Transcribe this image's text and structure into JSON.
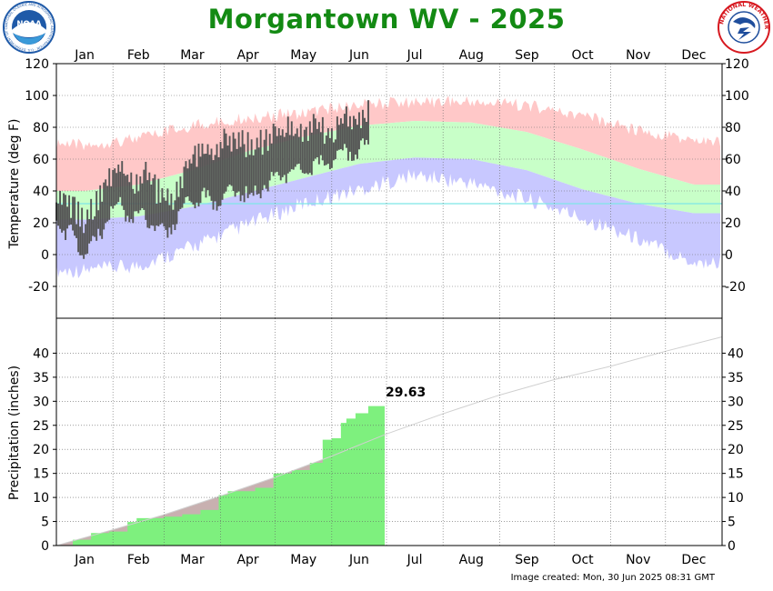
{
  "title": "Morgantown WV - 2025",
  "image_created": "Image created: Mon, 30 Jun 2025 08:31 GMT",
  "logos": {
    "noaa": {
      "text": "NOAA",
      "ring_text": "NATIONAL OCEANIC AND ATMOSPHERIC ADMINISTRATION · U.S. DEPARTMENT OF COMMERCE",
      "colors": {
        "blue": "#1f5aa8",
        "light": "#3a9ad9"
      }
    },
    "nws": {
      "ring_text": "NATIONAL WEATHER SERVICE",
      "colors": {
        "red": "#d71920",
        "blue": "#1f4e9c"
      }
    }
  },
  "colors": {
    "record_high_band": "#ffc8c8",
    "normal_band": "#c8ffc8",
    "record_low_band": "#c8c8ff",
    "observed": "#555555",
    "freezing_line": "#7ee6e6",
    "precip_observed": "#7ef07e",
    "precip_normal": "#c8b0b0",
    "title": "#138a13"
  },
  "chart_data": [
    {
      "type": "bar",
      "panel": "temperature",
      "ylabel": "Temperature (deg F)",
      "ylim": [
        -40,
        120
      ],
      "yticks": [
        120,
        100,
        80,
        60,
        40,
        20,
        0,
        -20
      ],
      "months": [
        "Jan",
        "Feb",
        "Mar",
        "Apr",
        "May",
        "Jun",
        "Jul",
        "Aug",
        "Sep",
        "Oct",
        "Nov",
        "Dec"
      ],
      "grid": true,
      "freezing_line": 32,
      "normal_high_monthly": [
        40,
        44,
        53,
        65,
        74,
        81,
        84,
        83,
        77,
        66,
        54,
        44
      ],
      "normal_low_monthly": [
        22,
        24,
        30,
        39,
        48,
        57,
        61,
        60,
        53,
        41,
        32,
        26
      ],
      "record_high_monthly": [
        73,
        77,
        85,
        90,
        93,
        98,
        100,
        100,
        98,
        91,
        82,
        75
      ],
      "record_low_monthly": [
        -15,
        -12,
        0,
        14,
        27,
        36,
        45,
        40,
        30,
        18,
        5,
        -10
      ],
      "observed_days": 172,
      "observed_highs_weekly": [
        32,
        33,
        21,
        31,
        47,
        55,
        45,
        51,
        37,
        36,
        56,
        66,
        62,
        74,
        71,
        68,
        70,
        76,
        79,
        72,
        82,
        76,
        84,
        85,
        90
      ],
      "observed_lows_weekly": [
        22,
        14,
        2,
        7,
        25,
        32,
        21,
        24,
        13,
        20,
        34,
        37,
        34,
        37,
        41,
        34,
        45,
        48,
        53,
        52,
        56,
        58,
        64,
        66,
        68
      ]
    },
    {
      "type": "area",
      "panel": "precipitation",
      "ylabel": "Precipitation (inches)",
      "ylim": [
        0,
        45
      ],
      "yticks": [
        40,
        35,
        30,
        25,
        20,
        15,
        10,
        5,
        0
      ],
      "months": [
        "Jan",
        "Feb",
        "Mar",
        "Apr",
        "May",
        "Jun",
        "Jul",
        "Aug",
        "Sep",
        "Oct",
        "Nov",
        "Dec"
      ],
      "grid": true,
      "annotation": "29.63",
      "normal_cumulative_month_end": [
        3.3,
        6.4,
        10.3,
        14.2,
        18.6,
        23.2,
        27.4,
        31.3,
        34.5,
        37.3,
        40.4,
        43.4
      ],
      "observed_cumulative_weekly": {
        "day": [
          1,
          10,
          20,
          30,
          40,
          45,
          60,
          70,
          80,
          90,
          95,
          110,
          120,
          130,
          140,
          147,
          152,
          157,
          160,
          165,
          172,
          181
        ],
        "value": [
          0.1,
          1.2,
          2.6,
          2.9,
          4.9,
          5.7,
          6.0,
          6.5,
          7.4,
          10.5,
          11.3,
          12.0,
          15.0,
          15.7,
          17.2,
          22.0,
          22.3,
          25.5,
          26.4,
          27.5,
          29.0,
          29.63
        ]
      }
    }
  ]
}
